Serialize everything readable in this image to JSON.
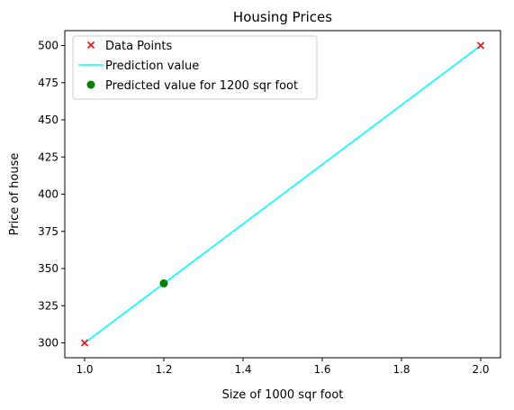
{
  "chart_data": {
    "type": "scatter",
    "title": "Housing Prices",
    "xlabel": "Size of 1000 sqr foot",
    "ylabel": "Price of house",
    "xlim": [
      0.95,
      2.05
    ],
    "ylim": [
      290,
      510
    ],
    "x_ticks": [
      1.0,
      1.2,
      1.4,
      1.6,
      1.8,
      2.0
    ],
    "x_tick_labels": [
      "1.0",
      "1.2",
      "1.4",
      "1.6",
      "1.8",
      "2.0"
    ],
    "y_ticks": [
      300,
      325,
      350,
      375,
      400,
      425,
      450,
      475,
      500
    ],
    "y_tick_labels": [
      "300",
      "325",
      "350",
      "375",
      "400",
      "425",
      "450",
      "475",
      "500"
    ],
    "grid": false,
    "legend_position": "top-left",
    "series": [
      {
        "name": "Data Points",
        "kind": "scatter",
        "marker": "x",
        "color": "#e41a1c",
        "x": [
          1.0,
          2.0
        ],
        "y": [
          300,
          500
        ]
      },
      {
        "name": "Prediction value",
        "kind": "line",
        "color": "#00ffff",
        "x": [
          1.0,
          2.0
        ],
        "y": [
          300,
          500
        ]
      },
      {
        "name": "Predicted value for 1200 sqr foot",
        "kind": "scatter",
        "marker": "o",
        "color": "#008000",
        "x": [
          1.2
        ],
        "y": [
          340
        ]
      }
    ]
  }
}
